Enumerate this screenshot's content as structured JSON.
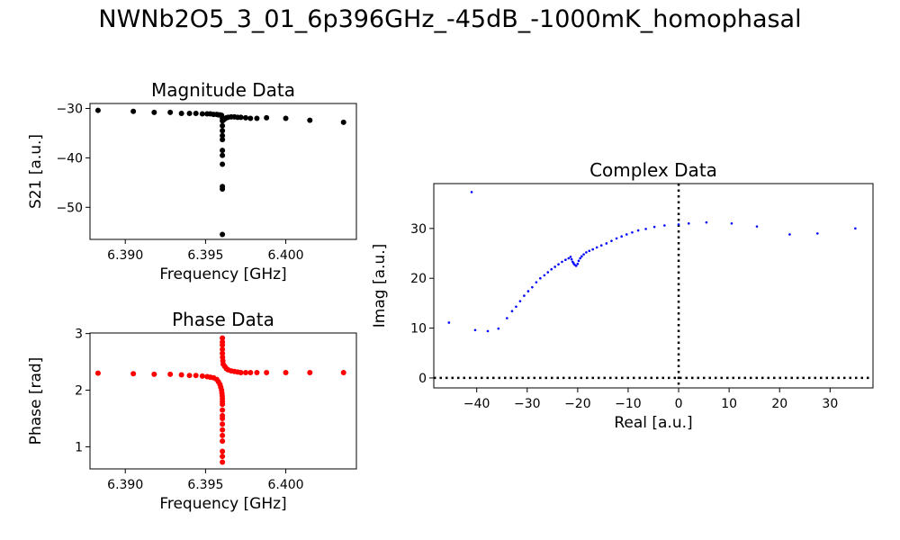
{
  "figure": {
    "title": "NWNb2O5_3_01_6p396GHz_-45dB_-1000mK_homophasal"
  },
  "chart_data": [
    {
      "type": "scatter",
      "title": "Magnitude Data",
      "xlabel": "Frequency [GHz]",
      "ylabel": "S21 [a.u.]",
      "xlim": [
        6.3878,
        6.4044
      ],
      "ylim": [
        -56.5,
        -29.0
      ],
      "xticks": [
        {
          "value": 6.39,
          "label": "6.390"
        },
        {
          "value": 6.395,
          "label": "6.395"
        },
        {
          "value": 6.4,
          "label": "6.400"
        }
      ],
      "yticks": [
        {
          "value": -30,
          "label": "−30"
        },
        {
          "value": -40,
          "label": "−40"
        },
        {
          "value": -50,
          "label": "−50"
        }
      ],
      "color": "#000000",
      "marker_size": 3,
      "x": [
        6.3883,
        6.3905,
        6.3918,
        6.3928,
        6.3935,
        6.394,
        6.3944,
        6.3948,
        6.3951,
        6.3953,
        6.3955,
        6.3957,
        6.3958,
        6.3959,
        6.396,
        6.39605,
        6.39605,
        6.39605,
        6.39605,
        6.39605,
        6.39605,
        6.39605,
        6.39605,
        6.39605,
        6.39605,
        6.39605,
        6.39605,
        6.3961,
        6.3962,
        6.3963,
        6.3964,
        6.3966,
        6.3968,
        6.397,
        6.3972,
        6.3975,
        6.3978,
        6.3982,
        6.3988,
        6.4,
        6.4015,
        6.4036
      ],
      "y": [
        -30.4,
        -30.6,
        -30.8,
        -30.8,
        -31.0,
        -31.0,
        -31.0,
        -31.1,
        -31.1,
        -31.1,
        -31.2,
        -31.2,
        -31.3,
        -31.3,
        -31.4,
        -32.5,
        -33.5,
        -34.5,
        -35.5,
        -36.3,
        -38.5,
        -39.5,
        -41.3,
        -45.8,
        -46.3,
        -55.5,
        -32.0,
        -32.4,
        -32.1,
        -31.9,
        -31.8,
        -31.7,
        -31.7,
        -31.8,
        -31.8,
        -31.9,
        -32.0,
        -32.0,
        -31.9,
        -32.0,
        -32.4,
        -32.8
      ]
    },
    {
      "type": "scatter",
      "title": "Phase Data",
      "xlabel": "Frequency [GHz]",
      "ylabel": "Phase [rad]",
      "xlim": [
        6.3878,
        6.4044
      ],
      "ylim": [
        0.61,
        3.01
      ],
      "xticks": [
        {
          "value": 6.39,
          "label": "6.390"
        },
        {
          "value": 6.395,
          "label": "6.395"
        },
        {
          "value": 6.4,
          "label": "6.400"
        }
      ],
      "yticks": [
        {
          "value": 1,
          "label": "1"
        },
        {
          "value": 2,
          "label": "2"
        },
        {
          "value": 3,
          "label": "3"
        }
      ],
      "color": "#ff0000",
      "marker_size": 3,
      "x": [
        6.3883,
        6.3905,
        6.3918,
        6.3928,
        6.3935,
        6.394,
        6.3944,
        6.3948,
        6.3951,
        6.3953,
        6.3955,
        6.3957,
        6.3958,
        6.3959,
        6.39595,
        6.396,
        6.39602,
        6.39604,
        6.39605,
        6.39605,
        6.39605,
        6.39605,
        6.39605,
        6.39605,
        6.39605,
        6.39605,
        6.39605,
        6.39605,
        6.39605,
        6.39605,
        6.39605,
        6.39605,
        6.39605,
        6.39605,
        6.39605,
        6.39605,
        6.39606,
        6.39608,
        6.3961,
        6.3962,
        6.3963,
        6.3964,
        6.3966,
        6.3968,
        6.397,
        6.3972,
        6.3975,
        6.3978,
        6.3982,
        6.3988,
        6.4,
        6.4015,
        6.4036
      ],
      "y": [
        2.3,
        2.29,
        2.28,
        2.28,
        2.27,
        2.26,
        2.26,
        2.25,
        2.24,
        2.23,
        2.22,
        2.19,
        2.15,
        2.1,
        2.05,
        2.0,
        1.95,
        1.9,
        1.85,
        1.8,
        1.75,
        1.65,
        1.55,
        1.5,
        1.4,
        1.3,
        1.2,
        1.1,
        0.92,
        0.83,
        0.73,
        2.92,
        2.85,
        2.8,
        2.72,
        2.65,
        2.58,
        2.52,
        2.46,
        2.42,
        2.38,
        2.36,
        2.34,
        2.33,
        2.32,
        2.31,
        2.31,
        2.31,
        2.31,
        2.31,
        2.31,
        2.31,
        2.31
      ]
    },
    {
      "type": "scatter",
      "title": "Complex Data",
      "xlabel": "Real [a.u.]",
      "ylabel": "Imag [a.u.]",
      "xlim": [
        -48.5,
        38.5
      ],
      "ylim": [
        -2.0,
        39.0
      ],
      "xticks": [
        {
          "value": -40,
          "label": "−40"
        },
        {
          "value": -30,
          "label": "−30"
        },
        {
          "value": -20,
          "label": "−20"
        },
        {
          "value": -10,
          "label": "−10"
        },
        {
          "value": 0,
          "label": "0"
        },
        {
          "value": 10,
          "label": "10"
        },
        {
          "value": 20,
          "label": "20"
        },
        {
          "value": 30,
          "label": "30"
        }
      ],
      "yticks": [
        {
          "value": 0,
          "label": "0"
        },
        {
          "value": 10,
          "label": "10"
        },
        {
          "value": 20,
          "label": "20"
        },
        {
          "value": 30,
          "label": "30"
        }
      ],
      "color": "#0000ff",
      "marker_size": 1.3,
      "reference_lines": [
        {
          "axis": "x",
          "value": 0,
          "style": "dotted",
          "color": "#000000"
        },
        {
          "axis": "y",
          "value": 0,
          "style": "dotted",
          "color": "#000000"
        }
      ],
      "x": [
        -41.0,
        -45.5,
        -40.3,
        -37.8,
        -35.7,
        -34.0,
        -33.0,
        -32.2,
        -31.4,
        -30.6,
        -29.8,
        -29.0,
        -28.2,
        -27.4,
        -26.6,
        -25.9,
        -25.2,
        -24.5,
        -23.8,
        -23.1,
        -22.4,
        -21.8,
        -21.4,
        -21.2,
        -21.0,
        -20.8,
        -20.6,
        -20.3,
        -20.0,
        -19.8,
        -19.5,
        -19.2,
        -18.8,
        -18.3,
        -17.7,
        -17.0,
        -16.2,
        -15.3,
        -14.3,
        -13.3,
        -12.3,
        -11.3,
        -10.3,
        -9.2,
        -8.0,
        -6.5,
        -4.8,
        -2.8,
        0.0,
        2.0,
        5.5,
        10.5,
        15.5,
        22.0,
        27.5,
        35.0
      ],
      "y": [
        37.3,
        11.1,
        9.6,
        9.4,
        9.9,
        12.0,
        13.4,
        14.3,
        15.4,
        16.5,
        17.4,
        18.2,
        19.2,
        20.0,
        20.6,
        21.2,
        21.8,
        22.3,
        22.8,
        23.3,
        23.7,
        24.0,
        24.3,
        23.8,
        23.3,
        23.0,
        22.7,
        22.5,
        22.9,
        23.5,
        24.0,
        24.4,
        24.8,
        25.2,
        25.5,
        25.8,
        26.2,
        26.6,
        27.0,
        27.5,
        28.0,
        28.4,
        28.8,
        29.2,
        29.6,
        29.9,
        30.3,
        30.6,
        30.8,
        31.0,
        31.2,
        31.0,
        30.4,
        28.8,
        29.0,
        30.0
      ]
    }
  ]
}
